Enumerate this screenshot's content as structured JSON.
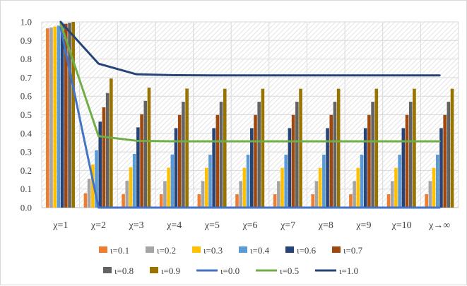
{
  "chart_data": {
    "type": "bar",
    "categories": [
      "χ=1",
      "χ=2",
      "χ=3",
      "χ=4",
      "χ=5",
      "χ=6",
      "χ=7",
      "χ=8",
      "χ=9",
      "χ=10",
      "χ→∞"
    ],
    "ylim": [
      0,
      1.0
    ],
    "yticks": [
      "0.0",
      "0.1",
      "0.2",
      "0.3",
      "0.4",
      "0.5",
      "0.6",
      "0.7",
      "0.8",
      "0.9",
      "1.0"
    ],
    "grid": true,
    "legend_position": "bottom",
    "bar_series": [
      {
        "name": "ι=0.1",
        "color": "#ED7D31",
        "values": [
          0.965,
          0.077,
          0.073,
          0.072,
          0.072,
          0.072,
          0.072,
          0.072,
          0.072,
          0.072,
          0.072
        ]
      },
      {
        "name": "ι=0.2",
        "color": "#A5A5A5",
        "values": [
          0.97,
          0.155,
          0.145,
          0.143,
          0.143,
          0.143,
          0.143,
          0.143,
          0.143,
          0.143,
          0.143
        ]
      },
      {
        "name": "ι=0.3",
        "color": "#FFC000",
        "values": [
          0.975,
          0.232,
          0.217,
          0.215,
          0.214,
          0.214,
          0.214,
          0.214,
          0.214,
          0.214,
          0.214
        ]
      },
      {
        "name": "ι=0.4",
        "color": "#5B9BD5",
        "values": [
          0.98,
          0.309,
          0.289,
          0.286,
          0.285,
          0.285,
          0.285,
          0.285,
          0.285,
          0.285,
          0.285
        ]
      },
      {
        "name": "ι=0.6",
        "color": "#264478",
        "values": [
          0.985,
          0.463,
          0.432,
          0.428,
          0.428,
          0.428,
          0.428,
          0.428,
          0.428,
          0.428,
          0.428
        ]
      },
      {
        "name": "ι=0.7",
        "color": "#9E480E",
        "values": [
          0.99,
          0.54,
          0.503,
          0.499,
          0.499,
          0.499,
          0.499,
          0.499,
          0.499,
          0.499,
          0.499
        ]
      },
      {
        "name": "ι=0.8",
        "color": "#636363",
        "values": [
          0.995,
          0.617,
          0.575,
          0.57,
          0.57,
          0.57,
          0.57,
          0.57,
          0.57,
          0.57,
          0.57
        ]
      },
      {
        "name": "ι=0.9",
        "color": "#997300",
        "values": [
          1.0,
          0.695,
          0.646,
          0.641,
          0.64,
          0.64,
          0.64,
          0.64,
          0.64,
          0.64,
          0.64
        ]
      }
    ],
    "line_series": [
      {
        "name": "ι=0.0",
        "color": "#4472C4",
        "values": [
          0.97,
          0.0,
          0.0,
          0.0,
          0.0,
          0.0,
          0.0,
          0.0,
          0.0,
          0.0,
          0.0
        ]
      },
      {
        "name": "ι=0.5",
        "color": "#70AD47",
        "values": [
          0.99,
          0.385,
          0.36,
          0.357,
          0.357,
          0.357,
          0.357,
          0.357,
          0.357,
          0.357,
          0.357
        ]
      },
      {
        "name": "ι=1.0",
        "color": "#264478",
        "values": [
          1.0,
          0.775,
          0.718,
          0.713,
          0.712,
          0.712,
          0.712,
          0.712,
          0.712,
          0.712,
          0.712
        ]
      }
    ]
  }
}
